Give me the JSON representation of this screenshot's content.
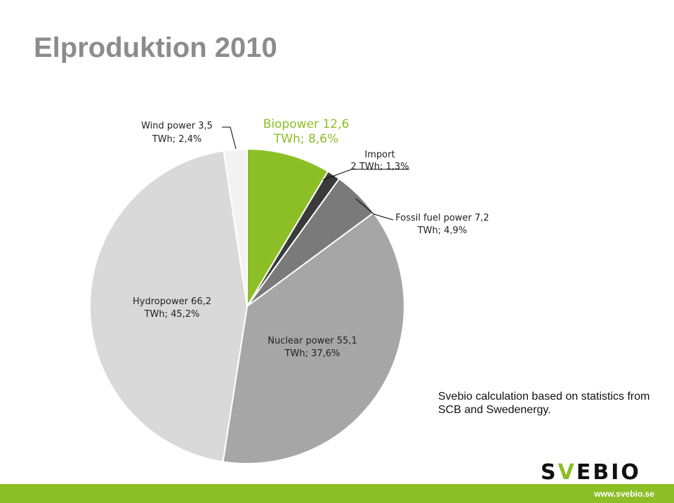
{
  "title": "Elproduktion 2010",
  "chart_data": {
    "type": "pie",
    "slices": [
      {
        "name": "Biopower",
        "value": 12.6,
        "percent": 8.6,
        "color": "#8cbf26",
        "label_lines": [
          "Biopower 12,6",
          "TWh; 8,6%"
        ]
      },
      {
        "name": "Import",
        "value": 2,
        "percent": 1.3,
        "color": "#3a3a3a",
        "label_lines": [
          "Import",
          "2 TWh; 1,3%"
        ]
      },
      {
        "name": "Fossil fuel power",
        "value": 7.2,
        "percent": 4.9,
        "color": "#7a7a7a",
        "label_lines": [
          "Fossil fuel power 7,2",
          "TWh; 4,9%"
        ]
      },
      {
        "name": "Nuclear power",
        "value": 55.1,
        "percent": 37.6,
        "color": "#a6a6a6",
        "label_lines": [
          "Nuclear power 55,1",
          "TWh; 37,6%"
        ]
      },
      {
        "name": "Hydropower",
        "value": 66.2,
        "percent": 45.2,
        "color": "#d9d9d9",
        "label_lines": [
          "Hydropower 66,2",
          "TWh; 45,2%"
        ]
      },
      {
        "name": "Wind power",
        "value": 3.5,
        "percent": 2.4,
        "color": "#f2f2f2",
        "label_lines": [
          "Wind power 3,5",
          "TWh; 2,4%"
        ]
      }
    ]
  },
  "note": "Svebio calculation based on statistics from SCB and Swedenergy.",
  "logo": {
    "s": "S",
    "v": "V",
    "rest": "EBIO"
  },
  "footer_url": "www.svebio.se",
  "colors": {
    "accent": "#8cbf26"
  }
}
